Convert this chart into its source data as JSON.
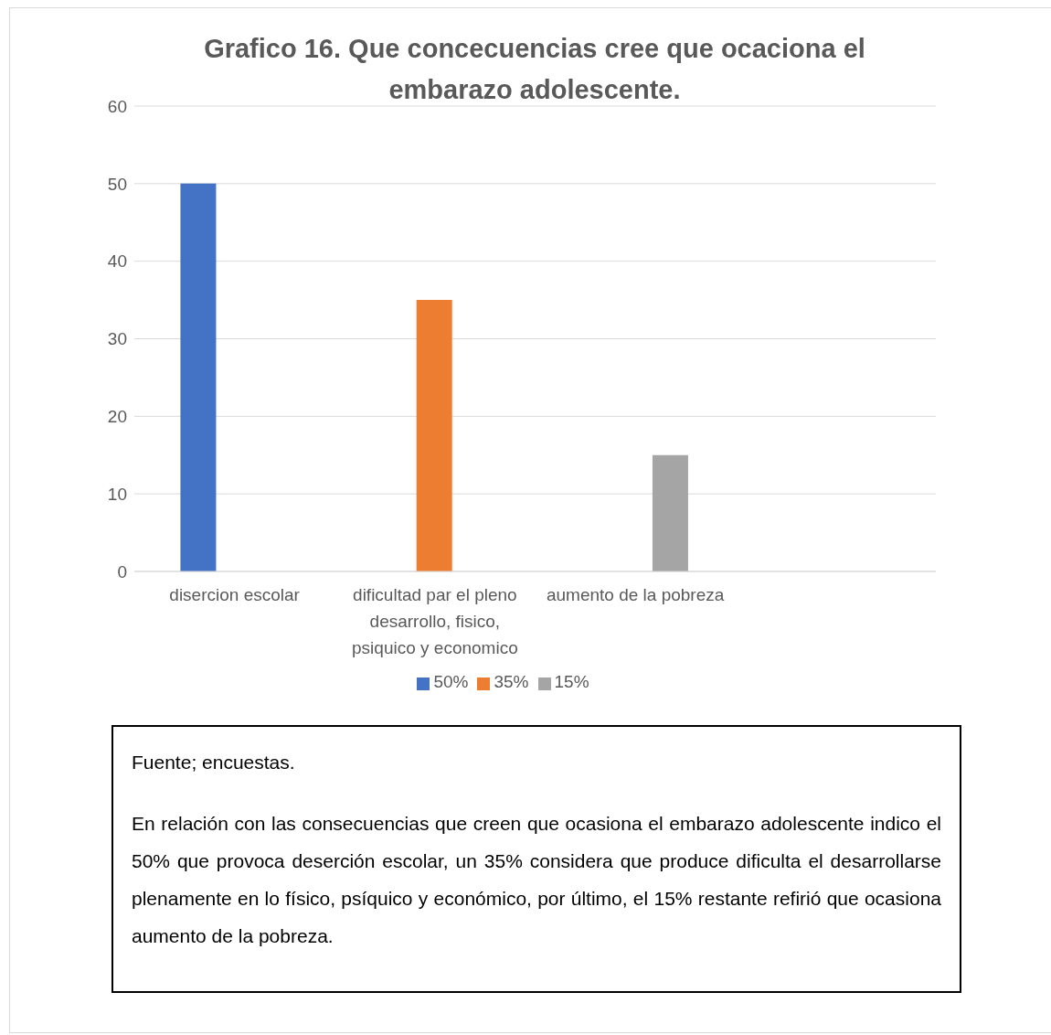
{
  "chart_data": {
    "type": "bar",
    "title": "Grafico 16. Que concecuencias cree que ocaciona el embarazo adolescente.",
    "categories": [
      "disercion escolar",
      "dificultad par el pleno desarrollo, fisico, psiquico y economico",
      "aumento de la pobreza",
      null
    ],
    "series": [
      {
        "name": "50%",
        "color": "#4472c4",
        "values": [
          50,
          null,
          null,
          null
        ]
      },
      {
        "name": "35%",
        "color": "#ed7d31",
        "values": [
          null,
          35,
          null,
          null
        ]
      },
      {
        "name": "15%",
        "color": "#a5a5a5",
        "values": [
          null,
          null,
          15,
          null
        ]
      }
    ],
    "ylim": [
      0,
      60
    ],
    "yticks": [
      0,
      10,
      20,
      30,
      40,
      50,
      60
    ],
    "grid": "y",
    "legend": "bottom",
    "annotations": [
      "Fuente; encuestas.",
      "En relación con las consecuencias que creen que ocasiona el embarazo adolescente indico el 50% que provoca deserción escolar, un 35% considera que produce dificulta el desarrollarse plenamente en lo físico, psíquico y económico, por último, el 15% restante refirió que ocasiona aumento de la pobreza."
    ]
  }
}
